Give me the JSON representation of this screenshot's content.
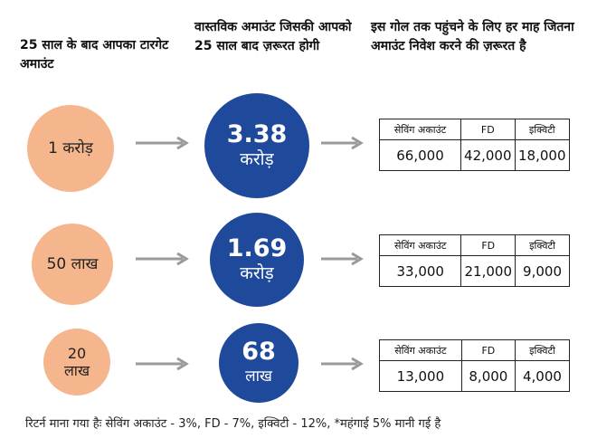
{
  "headers": {
    "col1": "25 साल के बाद आपका टारगेट अमाउंट",
    "col2": "वास्तविक अमाउंट जिसकी आपको 25 साल बाद ज़रूरत होगी",
    "col3": "इस गोल तक पहुंचने के लिए हर माह जितना अमाउंट निवेश करने की ज़रूरत है"
  },
  "table_headers": [
    "सेविंग अकाउंट",
    "FD",
    "इक्विटी"
  ],
  "rows": [
    {
      "target": "1 करोड़",
      "actual_value": "3.38",
      "actual_unit": "करोड़",
      "savings": "66,000",
      "fd": "42,000",
      "equity": "18,000"
    },
    {
      "target": "50 लाख",
      "actual_value": "1.69",
      "actual_unit": "करोड़",
      "savings": "33,000",
      "fd": "21,000",
      "equity": "9,000"
    },
    {
      "target": "20 लाख",
      "actual_value": "68",
      "actual_unit": "लाख",
      "savings": "13,000",
      "fd": "8,000",
      "equity": "4,000"
    }
  ],
  "footer": "रिटर्न माना गया हैः सेविंग अकाउंट - 3%, FD - 7%, इक्विटी - 12%, *महंगाई 5% मानी गई है",
  "colors": {
    "peach": "#f6b68d",
    "blue": "#1f4a9c",
    "arrow": "#9a9a9a"
  }
}
